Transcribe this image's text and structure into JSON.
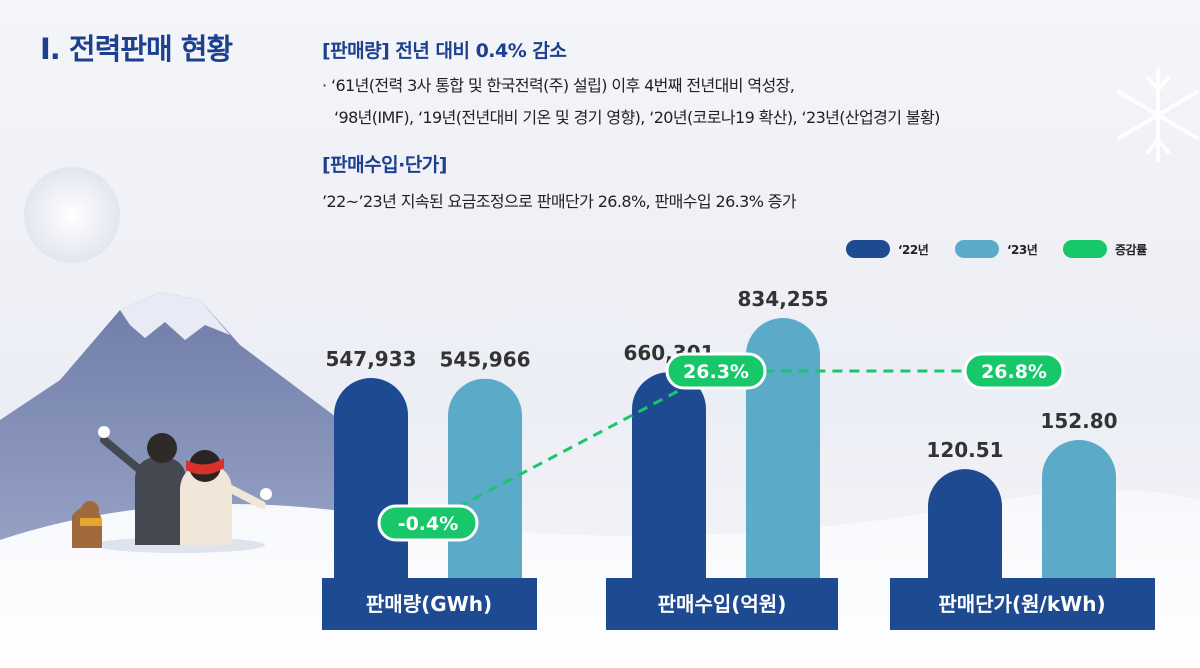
{
  "title": "Ⅰ. 전력판매 현황",
  "sections": [
    {
      "heading": "[판매량] 전년 대비 0.4% 감소",
      "lines": [
        "· ‘61년(전력 3사 통합 및 한국전력(주) 설립) 이후 4번째 전년대비 역성장,",
        "‘98년(IMF), ‘19년(전년대비 기온 및 경기 영향), ‘20년(코로나19 확산), ‘23년(산업경기 불황)"
      ]
    },
    {
      "heading": "[판매수입·단가]",
      "lines": [
        "’22~’23년 지속된 요금조정으로 판매단가 26.8%, 판매수입 26.3% 증가"
      ]
    }
  ],
  "legend": [
    {
      "label": "‘22년",
      "color": "#1e4a92"
    },
    {
      "label": "‘23년",
      "color": "#5aaac8"
    },
    {
      "label": "증감률",
      "color": "#17c76a"
    }
  ],
  "chart_data": {
    "type": "bar",
    "categories": [
      "판매량(GWh)",
      "판매수입(억원)",
      "판매단가(원/kWh)"
    ],
    "series": [
      {
        "name": "‘22년",
        "values": [
          547933,
          660301,
          120.51
        ],
        "labels": [
          "547,933",
          "660,301",
          "120.51"
        ],
        "color": "#1e4a92"
      },
      {
        "name": "‘23년",
        "values": [
          545966,
          834255,
          152.8
        ],
        "labels": [
          "545,966",
          "834,255",
          "152.80"
        ],
        "color": "#5aaac8"
      }
    ],
    "change_rate": {
      "name": "증감률",
      "values": [
        -0.4,
        26.3,
        26.8
      ],
      "labels": [
        "-0.4%",
        "26.3%",
        "26.8%"
      ],
      "color": "#17c76a"
    },
    "category_band_color": "#1e4a92",
    "value_axis": "independent per category",
    "grid": false,
    "legend_position": "top-right"
  }
}
